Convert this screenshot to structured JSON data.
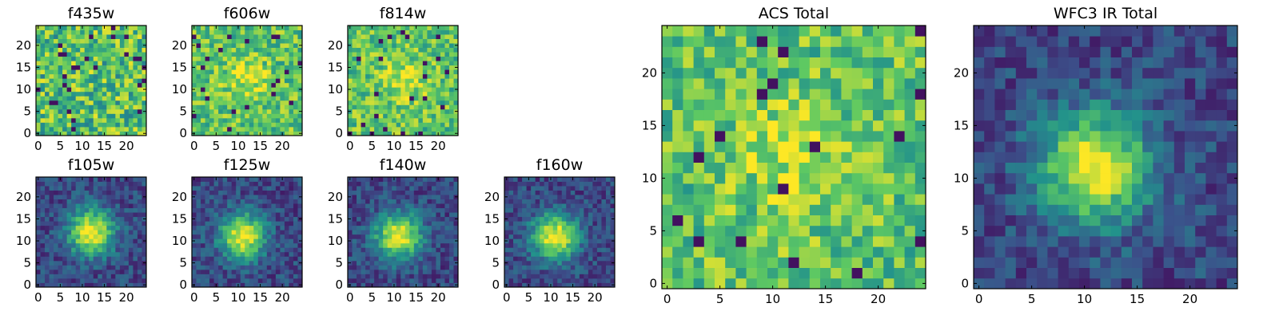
{
  "figure": {
    "colormap": "viridis",
    "image_size": "25x25 pixels per panel",
    "colormap_stops": [
      "#440154",
      "#3b528b",
      "#21918c",
      "#5ec962",
      "#fde725"
    ]
  },
  "chart_data": [
    {
      "type": "heatmap",
      "title": "f435w",
      "xlim": [
        0,
        24
      ],
      "ylim": [
        0,
        24
      ],
      "xticks": [
        "0",
        "5",
        "10",
        "15",
        "20"
      ],
      "yticks": [
        "0",
        "5",
        "10",
        "15",
        "20"
      ],
      "profile": "noise"
    },
    {
      "type": "heatmap",
      "title": "f606w",
      "xlim": [
        0,
        24
      ],
      "ylim": [
        0,
        24
      ],
      "xticks": [
        "0",
        "5",
        "10",
        "15",
        "20"
      ],
      "yticks": [
        "0",
        "5",
        "10",
        "15",
        "20"
      ],
      "profile": "weak-source"
    },
    {
      "type": "heatmap",
      "title": "f814w",
      "xlim": [
        0,
        24
      ],
      "ylim": [
        0,
        24
      ],
      "xticks": [
        "0",
        "5",
        "10",
        "15",
        "20"
      ],
      "yticks": [
        "0",
        "5",
        "10",
        "15",
        "20"
      ],
      "profile": "weak-source"
    },
    {
      "type": "heatmap",
      "title": "f105w",
      "xlim": [
        0,
        24
      ],
      "ylim": [
        0,
        24
      ],
      "xticks": [
        "0",
        "5",
        "10",
        "15",
        "20"
      ],
      "yticks": [
        "0",
        "5",
        "10",
        "15",
        "20"
      ],
      "profile": "source",
      "peak": [
        12,
        12
      ]
    },
    {
      "type": "heatmap",
      "title": "f125w",
      "xlim": [
        0,
        24
      ],
      "ylim": [
        0,
        24
      ],
      "xticks": [
        "0",
        "5",
        "10",
        "15",
        "20"
      ],
      "yticks": [
        "0",
        "5",
        "10",
        "15",
        "20"
      ],
      "profile": "source",
      "peak": [
        11,
        11
      ]
    },
    {
      "type": "heatmap",
      "title": "f140w",
      "xlim": [
        0,
        24
      ],
      "ylim": [
        0,
        24
      ],
      "xticks": [
        "0",
        "5",
        "10",
        "15",
        "20"
      ],
      "yticks": [
        "0",
        "5",
        "10",
        "15",
        "20"
      ],
      "profile": "source",
      "peak": [
        11,
        11
      ]
    },
    {
      "type": "heatmap",
      "title": "f160w",
      "xlim": [
        0,
        24
      ],
      "ylim": [
        0,
        24
      ],
      "xticks": [
        "0",
        "5",
        "10",
        "15",
        "20"
      ],
      "yticks": [
        "0",
        "5",
        "10",
        "15",
        "20"
      ],
      "profile": "source",
      "peak": [
        11,
        11
      ]
    },
    {
      "type": "heatmap",
      "title": "ACS Total",
      "xlim": [
        0,
        24
      ],
      "ylim": [
        0,
        24
      ],
      "xticks": [
        "0",
        "5",
        "10",
        "15",
        "20"
      ],
      "yticks": [
        "0",
        "5",
        "10",
        "15",
        "20"
      ],
      "profile": "weak-source"
    },
    {
      "type": "heatmap",
      "title": "WFC3 IR Total",
      "xlim": [
        0,
        24
      ],
      "ylim": [
        0,
        24
      ],
      "xticks": [
        "0",
        "5",
        "10",
        "15",
        "20"
      ],
      "yticks": [
        "0",
        "5",
        "10",
        "15",
        "20"
      ],
      "profile": "source",
      "peak": [
        11,
        11
      ]
    }
  ]
}
